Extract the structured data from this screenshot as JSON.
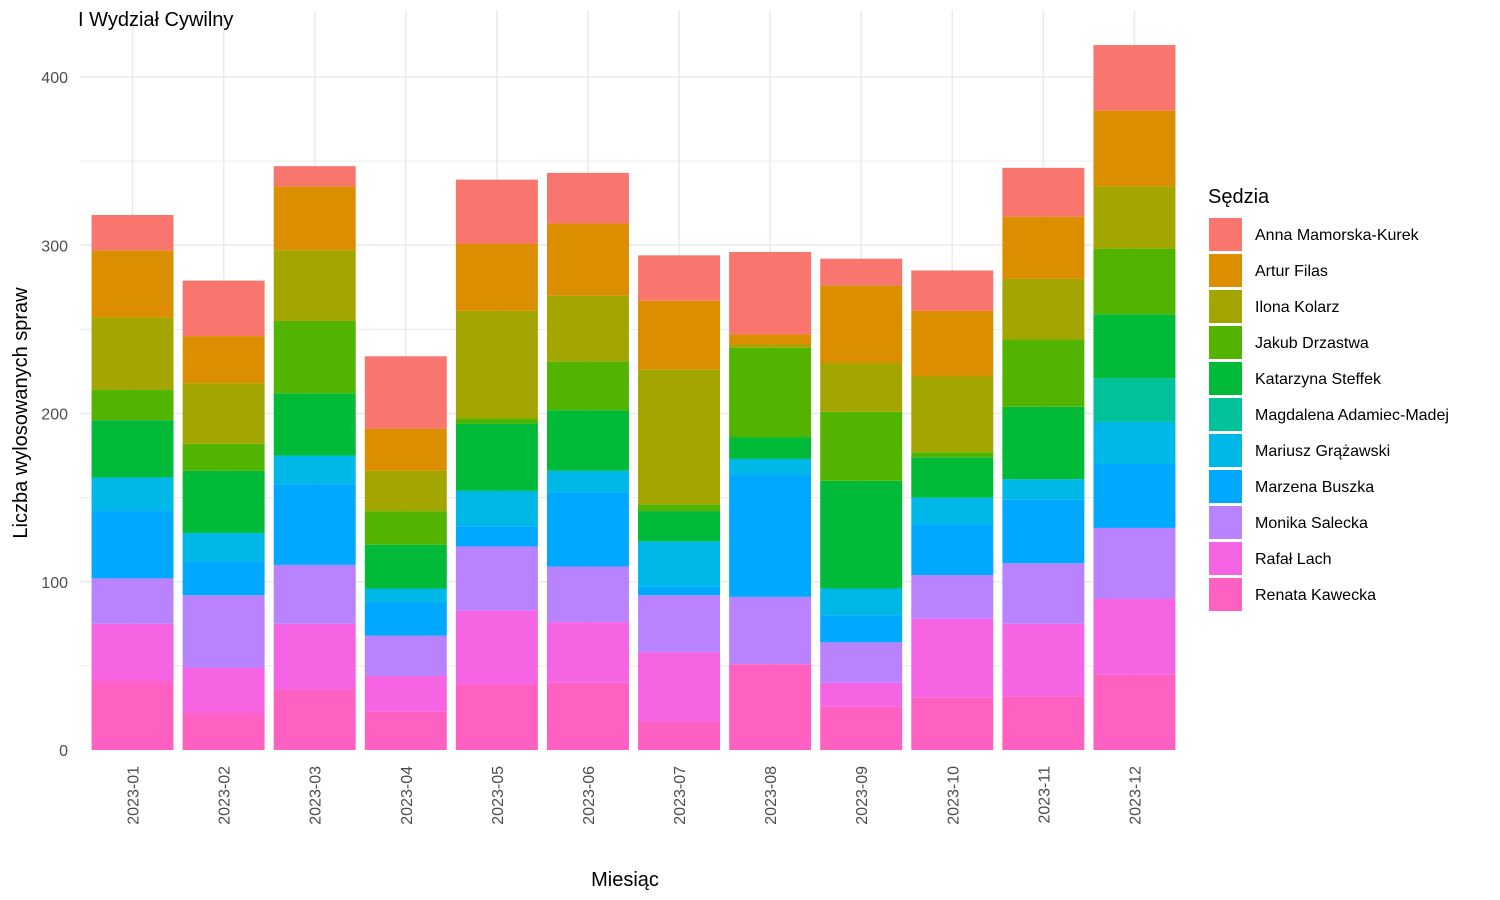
{
  "chart_data": {
    "type": "bar",
    "stacked": true,
    "title": "I Wydział Cywilny",
    "xlabel": "Miesiąc",
    "ylabel": "Liczba wylosowanych spraw",
    "ylim": [
      0,
      430
    ],
    "yticks": [
      0,
      100,
      200,
      300,
      400
    ],
    "grid": true,
    "legend_position": "right",
    "legend_title": "Sędzia",
    "categories": [
      "2023-01",
      "2023-02",
      "2023-03",
      "2023-04",
      "2023-05",
      "2023-06",
      "2023-07",
      "2023-08",
      "2023-09",
      "2023-10",
      "2023-11",
      "2023-12"
    ],
    "series": [
      {
        "name": "Renata Kawecka",
        "color": "#FF61C3",
        "values": [
          41,
          22,
          36,
          23,
          39,
          40,
          17,
          51,
          26,
          31,
          32,
          45
        ]
      },
      {
        "name": "Rafał Lach",
        "color": "#F564E3",
        "values": [
          34,
          27,
          39,
          21,
          44,
          36,
          41,
          0,
          14,
          47,
          43,
          45
        ]
      },
      {
        "name": "Monika Salecka",
        "color": "#B983FF",
        "values": [
          27,
          43,
          35,
          24,
          38,
          33,
          34,
          40,
          24,
          26,
          36,
          42
        ]
      },
      {
        "name": "Marzena Buszka",
        "color": "#00A9FF",
        "values": [
          40,
          20,
          48,
          20,
          12,
          44,
          5,
          73,
          16,
          30,
          38,
          38
        ]
      },
      {
        "name": "Mariusz Grążawski",
        "color": "#00B8E7",
        "values": [
          20,
          17,
          17,
          8,
          21,
          13,
          27,
          9,
          16,
          16,
          12,
          25
        ]
      },
      {
        "name": "Magdalena Adamiec-Madej",
        "color": "#00C19A",
        "values": [
          0,
          0,
          0,
          0,
          0,
          0,
          0,
          0,
          0,
          0,
          0,
          26
        ]
      },
      {
        "name": "Katarzyna Steffek",
        "color": "#00BA38",
        "values": [
          34,
          37,
          37,
          26,
          40,
          36,
          18,
          13,
          64,
          24,
          43,
          38
        ]
      },
      {
        "name": "Jakub Drzastwa",
        "color": "#53B400",
        "values": [
          18,
          16,
          43,
          20,
          3,
          29,
          4,
          53,
          41,
          3,
          40,
          39
        ]
      },
      {
        "name": "Ilona Kolarz",
        "color": "#A3A500",
        "values": [
          43,
          36,
          42,
          24,
          64,
          39,
          80,
          2,
          29,
          45,
          36,
          37
        ]
      },
      {
        "name": "Artur Filas",
        "color": "#DB8E00",
        "values": [
          40,
          28,
          38,
          25,
          40,
          43,
          41,
          6,
          46,
          39,
          37,
          45
        ]
      },
      {
        "name": "Anna Mamorska-Kurek",
        "color": "#F8766D",
        "values": [
          21,
          33,
          12,
          43,
          38,
          30,
          27,
          49,
          16,
          24,
          29,
          39
        ]
      }
    ]
  }
}
